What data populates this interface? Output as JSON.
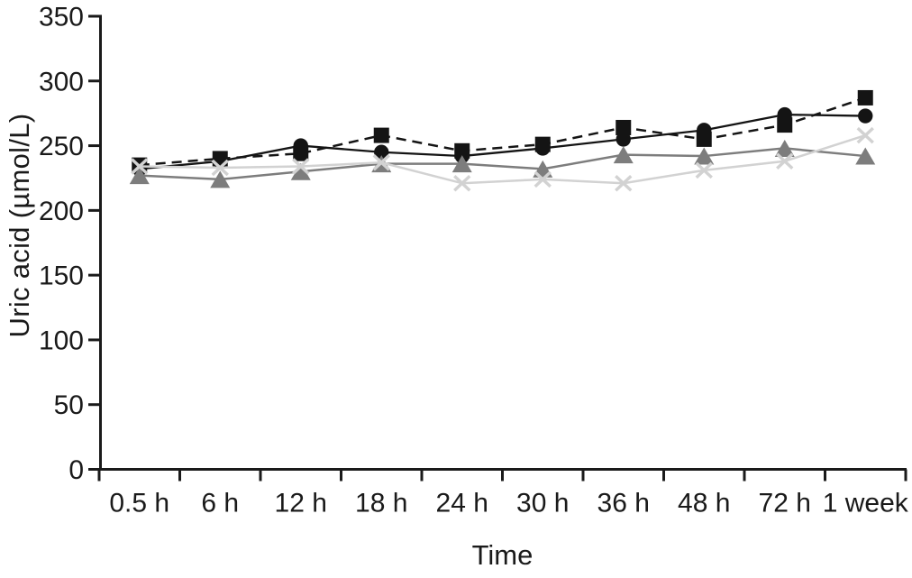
{
  "figure": {
    "background": "#ffffff",
    "axis_color": "#1a1a1a"
  },
  "chart_data": {
    "type": "line",
    "title": "",
    "xlabel": "Time",
    "ylabel": "Uric acid (µmol/L)",
    "categories": [
      "0.5 h",
      "6 h",
      "12 h",
      "18 h",
      "24 h",
      "30 h",
      "36 h",
      "48 h",
      "72 h",
      "1 week"
    ],
    "ylim": [
      0,
      350
    ],
    "yticks": [
      0,
      50,
      100,
      150,
      200,
      250,
      300,
      350
    ],
    "grid": false,
    "legend": "none",
    "series": [
      {
        "name": "filled circle, solid black line",
        "marker": "circle",
        "line_style": "solid",
        "color": "#141414",
        "values": [
          232,
          238,
          250,
          245,
          242,
          248,
          255,
          262,
          274,
          273
        ]
      },
      {
        "name": "filled square, dashed black line",
        "marker": "square",
        "line_style": "dashed",
        "color": "#141414",
        "values": [
          235,
          240,
          244,
          258,
          246,
          251,
          264,
          255,
          266,
          287
        ]
      },
      {
        "name": "filled triangle, solid gray line",
        "marker": "triangle",
        "line_style": "solid",
        "color": "#7d7d7d",
        "values": [
          227,
          224,
          230,
          236,
          236,
          232,
          243,
          242,
          248,
          242
        ]
      },
      {
        "name": "x marker, solid light-gray line",
        "marker": "x",
        "line_style": "solid",
        "color": "#d2d2d2",
        "values": [
          234,
          233,
          234,
          237,
          221,
          224,
          221,
          231,
          238,
          258
        ]
      }
    ]
  }
}
